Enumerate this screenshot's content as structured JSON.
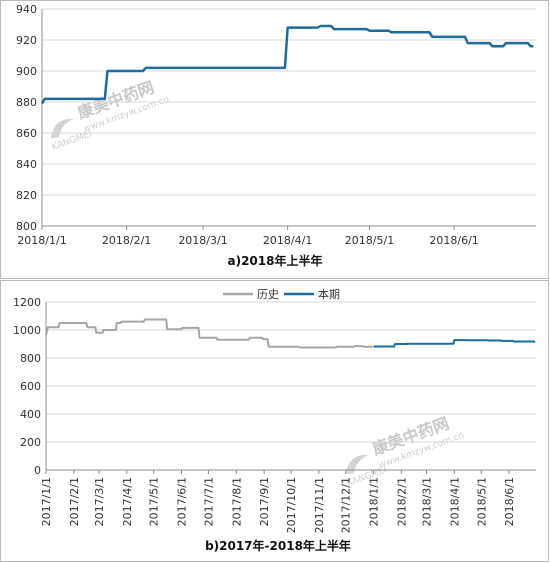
{
  "chart_data": [
    {
      "type": "line",
      "title": "a)2018年上半年",
      "xlabel": "",
      "ylabel": "",
      "ylim": [
        800,
        940
      ],
      "yticks": [
        800,
        820,
        840,
        860,
        880,
        900,
        920,
        940
      ],
      "xlim": [
        "2018/1/1",
        "2018/6/30"
      ],
      "xticks": [
        "2018/1/1",
        "2018/2/1",
        "2018/3/1",
        "2018/4/1",
        "2018/5/1",
        "2018/6/1"
      ],
      "grid": "horizontal",
      "legend": "none",
      "series": [
        {
          "color": "#1f6b9e",
          "points": [
            [
              "2018/1/1",
              879
            ],
            [
              "2018/1/2",
              882
            ],
            [
              "2018/1/24",
              882
            ],
            [
              "2018/1/25",
              900
            ],
            [
              "2018/2/7",
              900
            ],
            [
              "2018/2/8",
              902
            ],
            [
              "2018/3/31",
              902
            ],
            [
              "2018/4/1",
              928
            ],
            [
              "2018/4/12",
              928
            ],
            [
              "2018/4/13",
              929
            ],
            [
              "2018/4/17",
              929
            ],
            [
              "2018/4/18",
              927
            ],
            [
              "2018/4/30",
              927
            ],
            [
              "2018/5/1",
              926
            ],
            [
              "2018/5/8",
              926
            ],
            [
              "2018/5/9",
              925
            ],
            [
              "2018/5/23",
              925
            ],
            [
              "2018/5/24",
              922
            ],
            [
              "2018/6/5",
              922
            ],
            [
              "2018/6/6",
              918
            ],
            [
              "2018/6/14",
              918
            ],
            [
              "2018/6/15",
              916
            ],
            [
              "2018/6/19",
              916
            ],
            [
              "2018/6/20",
              918
            ],
            [
              "2018/6/28",
              918
            ],
            [
              "2018/6/29",
              916
            ],
            [
              "2018/6/30",
              916
            ]
          ]
        }
      ]
    },
    {
      "type": "line",
      "title": "b)2017年-2018年上半年",
      "xlabel": "",
      "ylabel": "",
      "ylim": [
        0,
        1200
      ],
      "yticks": [
        0,
        200,
        400,
        600,
        800,
        1000,
        1200
      ],
      "xlim": [
        "2017/1/1",
        "2018/6/30"
      ],
      "xticks": [
        "2017/1/1",
        "2017/2/1",
        "2017/3/1",
        "2017/4/1",
        "2017/5/1",
        "2017/6/1",
        "2017/7/1",
        "2017/8/1",
        "2017/9/1",
        "2017/10/1",
        "2017/11/1",
        "2017/12/1",
        "2018/1/1",
        "2018/2/1",
        "2018/3/1",
        "2018/4/1",
        "2018/5/1",
        "2018/6/1"
      ],
      "grid": "horizontal",
      "legend": "top",
      "series": [
        {
          "name": "历史",
          "color": "#a6a6a6",
          "points": [
            [
              "2017/1/1",
              960
            ],
            [
              "2017/1/3",
              1020
            ],
            [
              "2017/1/15",
              1020
            ],
            [
              "2017/1/16",
              1050
            ],
            [
              "2017/2/15",
              1050
            ],
            [
              "2017/2/16",
              1020
            ],
            [
              "2017/2/25",
              1020
            ],
            [
              "2017/2/26",
              980
            ],
            [
              "2017/3/5",
              980
            ],
            [
              "2017/3/6",
              1000
            ],
            [
              "2017/3/20",
              1000
            ],
            [
              "2017/3/21",
              1050
            ],
            [
              "2017/3/25",
              1050
            ],
            [
              "2017/3/26",
              1060
            ],
            [
              "2017/4/20",
              1060
            ],
            [
              "2017/4/21",
              1075
            ],
            [
              "2017/5/15",
              1075
            ],
            [
              "2017/5/16",
              1005
            ],
            [
              "2017/6/1",
              1005
            ],
            [
              "2017/6/2",
              1015
            ],
            [
              "2017/6/20",
              1015
            ],
            [
              "2017/6/21",
              945
            ],
            [
              "2017/7/10",
              945
            ],
            [
              "2017/7/11",
              930
            ],
            [
              "2017/8/15",
              930
            ],
            [
              "2017/8/16",
              945
            ],
            [
              "2017/8/30",
              945
            ],
            [
              "2017/8/31",
              935
            ],
            [
              "2017/9/5",
              935
            ],
            [
              "2017/9/6",
              880
            ],
            [
              "2017/10/10",
              880
            ],
            [
              "2017/10/11",
              875
            ],
            [
              "2017/11/20",
              875
            ],
            [
              "2017/11/21",
              880
            ],
            [
              "2017/12/10",
              880
            ],
            [
              "2017/12/11",
              885
            ],
            [
              "2017/12/20",
              885
            ],
            [
              "2017/12/21",
              880
            ],
            [
              "2017/12/31",
              880
            ]
          ]
        },
        {
          "name": "本期",
          "color": "#1f6b9e",
          "points": [
            [
              "2018/1/1",
              879
            ],
            [
              "2018/1/2",
              882
            ],
            [
              "2018/1/24",
              882
            ],
            [
              "2018/1/25",
              900
            ],
            [
              "2018/2/7",
              900
            ],
            [
              "2018/2/8",
              902
            ],
            [
              "2018/3/31",
              902
            ],
            [
              "2018/4/1",
              928
            ],
            [
              "2018/4/17",
              928
            ],
            [
              "2018/4/18",
              927
            ],
            [
              "2018/5/8",
              927
            ],
            [
              "2018/5/9",
              925
            ],
            [
              "2018/5/23",
              925
            ],
            [
              "2018/5/24",
              922
            ],
            [
              "2018/6/5",
              922
            ],
            [
              "2018/6/6",
              918
            ],
            [
              "2018/6/28",
              918
            ],
            [
              "2018/6/29",
              916
            ],
            [
              "2018/6/30",
              916
            ]
          ]
        }
      ]
    }
  ],
  "watermark": {
    "brand": "康美中药网",
    "url": "www.kmzyw.com.cn",
    "sub": "KANGMEI"
  }
}
